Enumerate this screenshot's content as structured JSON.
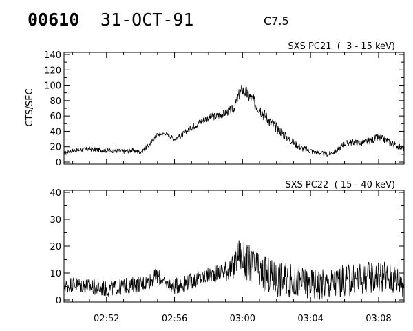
{
  "header": {
    "event_id": "00610",
    "date": "31-OCT-91",
    "flare_class": "C7.5"
  },
  "chart_data": [
    {
      "type": "line",
      "title": "SXS PC21  (  3 - 15 keV)",
      "ylabel": "CTS/SEC",
      "xlabel": "",
      "xlim": [
        "02:49:30",
        "03:09:30"
      ],
      "ylim": [
        0,
        140
      ],
      "yticks": [
        "0",
        "20",
        "40",
        "60",
        "80",
        "100",
        "120",
        "140"
      ],
      "xtick_labels": [],
      "grid": false,
      "x_minutes": [
        -10.5,
        -10,
        -9.5,
        -9,
        -8.5,
        -8,
        -7.5,
        -7,
        -6.5,
        -6,
        -5.5,
        -5,
        -4.5,
        -4,
        -3.5,
        -3,
        -2.5,
        -2,
        -1.5,
        -1,
        -0.5,
        -0.2,
        0,
        0.3,
        0.6,
        1,
        1.5,
        2,
        2.5,
        3,
        3.5,
        4,
        4.5,
        5,
        5.5,
        6,
        6.5,
        7,
        7.5,
        8,
        8.5,
        9,
        9.5
      ],
      "series": [
        {
          "values": [
            12,
            15,
            16,
            17,
            16,
            15,
            15,
            14,
            15,
            13,
            22,
            36,
            37,
            30,
            36,
            45,
            52,
            58,
            60,
            64,
            70,
            88,
            95,
            88,
            80,
            70,
            55,
            45,
            35,
            25,
            18,
            15,
            12,
            10,
            14,
            24,
            26,
            25,
            28,
            32,
            28,
            22,
            18
          ],
          "noise": [
            2,
            3,
            3,
            3,
            3,
            3,
            3,
            3,
            3,
            3,
            3,
            3,
            2,
            3,
            4,
            4,
            5,
            5,
            5,
            5,
            6,
            8,
            9,
            9,
            9,
            9,
            8,
            7,
            6,
            5,
            4,
            4,
            3,
            3,
            3,
            4,
            4,
            4,
            5,
            5,
            5,
            4,
            4
          ]
        }
      ]
    },
    {
      "type": "line",
      "title": "SXS PC22  ( 15 - 40 keV)",
      "ylabel": "",
      "xlabel": "",
      "xlim": [
        "02:49:30",
        "03:09:30"
      ],
      "ylim": [
        0,
        40
      ],
      "yticks": [
        "0",
        "10",
        "20",
        "30",
        "40"
      ],
      "xtick_labels": [
        "02:52",
        "02:56",
        "03:00",
        "03:04",
        "03:08"
      ],
      "grid": false,
      "x_minutes": [
        -10.5,
        -10,
        -9,
        -8,
        -7,
        -6,
        -5.5,
        -5,
        -4.5,
        -4,
        -3.5,
        -3,
        -2.5,
        -2,
        -1.5,
        -1,
        -0.5,
        -0.2,
        0,
        0.5,
        1,
        2,
        3,
        4,
        5,
        6,
        7,
        8,
        9,
        9.5
      ],
      "series": [
        {
          "values": [
            5,
            6,
            5,
            4,
            5,
            6,
            7,
            9,
            6,
            5,
            6,
            7,
            8,
            9,
            10,
            11,
            12,
            18,
            15,
            13,
            10,
            8,
            7,
            6,
            6,
            7,
            8,
            9,
            8,
            7
          ],
          "noise": [
            3,
            3,
            3,
            3,
            3,
            3,
            3,
            3,
            2,
            3,
            3,
            3,
            3,
            3,
            3,
            4,
            5,
            6,
            7,
            7,
            7,
            7,
            6,
            6,
            6,
            6,
            6,
            6,
            6,
            6
          ]
        }
      ]
    }
  ]
}
